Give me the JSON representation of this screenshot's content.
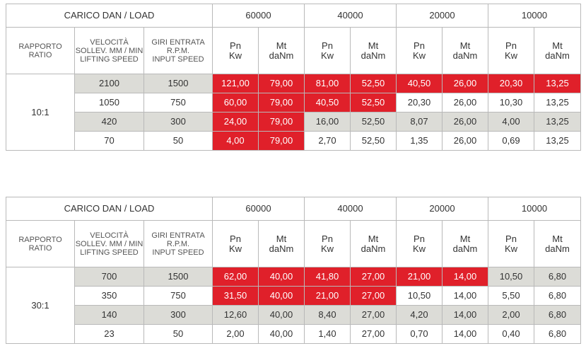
{
  "tables": [
    {
      "header": {
        "load_label": "CARICO DAN / LOAD",
        "loads": [
          "60000",
          "40000",
          "20000",
          "10000"
        ],
        "ratio": [
          "RAPPORTO",
          "RATIO"
        ],
        "speed": [
          "VELOCITÀ",
          "SOLLEV. MM / MIN",
          "LIFTING SPEED"
        ],
        "input": [
          "GIRI ENTRATA",
          "R.P.M.",
          "INPUT SPEED"
        ],
        "sub": [
          [
            "Pn",
            "Kw"
          ],
          [
            "Mt",
            "daNm"
          ]
        ]
      },
      "ratio": "10:1",
      "rows": [
        {
          "speed": "2100",
          "rpm": "1500",
          "values": [
            "121,00",
            "79,00",
            "81,00",
            "52,50",
            "40,50",
            "26,00",
            "20,30",
            "13,25"
          ]
        },
        {
          "speed": "1050",
          "rpm": "750",
          "values": [
            "60,00",
            "79,00",
            "40,50",
            "52,50",
            "20,30",
            "26,00",
            "10,30",
            "13,25"
          ]
        },
        {
          "speed": "420",
          "rpm": "300",
          "values": [
            "24,00",
            "79,00",
            "16,00",
            "52,50",
            "8,07",
            "26,00",
            "4,00",
            "13,25"
          ]
        },
        {
          "speed": "70",
          "rpm": "50",
          "values": [
            "4,00",
            "79,00",
            "2,70",
            "52,50",
            "1,35",
            "26,00",
            "0,69",
            "13,25"
          ]
        }
      ]
    },
    {
      "header": {
        "load_label": "CARICO DAN / LOAD",
        "loads": [
          "60000",
          "40000",
          "20000",
          "10000"
        ],
        "ratio": [
          "RAPPORTO",
          "RATIO"
        ],
        "speed": [
          "VELOCITÀ",
          "SOLLEV. MM / MIN",
          "LIFTING SPEED"
        ],
        "input": [
          "GIRI ENTRATA",
          "R.P.M.",
          "INPUT SPEED"
        ],
        "sub": [
          [
            "Pn",
            "Kw"
          ],
          [
            "Mt",
            "daNm"
          ]
        ]
      },
      "ratio": "30:1",
      "rows": [
        {
          "speed": "700",
          "rpm": "1500",
          "values": [
            "62,00",
            "40,00",
            "41,80",
            "27,00",
            "21,00",
            "14,00",
            "10,50",
            "6,80"
          ]
        },
        {
          "speed": "350",
          "rpm": "750",
          "values": [
            "31,50",
            "40,00",
            "21,00",
            "27,00",
            "10,50",
            "14,00",
            "5,50",
            "6,80"
          ]
        },
        {
          "speed": "140",
          "rpm": "300",
          "values": [
            "12,60",
            "40,00",
            "8,40",
            "27,00",
            "4,20",
            "14,00",
            "2,00",
            "6,80"
          ]
        },
        {
          "speed": "23",
          "rpm": "50",
          "values": [
            "2,00",
            "40,00",
            "1,40",
            "27,00",
            "0,70",
            "14,00",
            "0,40",
            "6,80"
          ]
        }
      ]
    }
  ]
}
